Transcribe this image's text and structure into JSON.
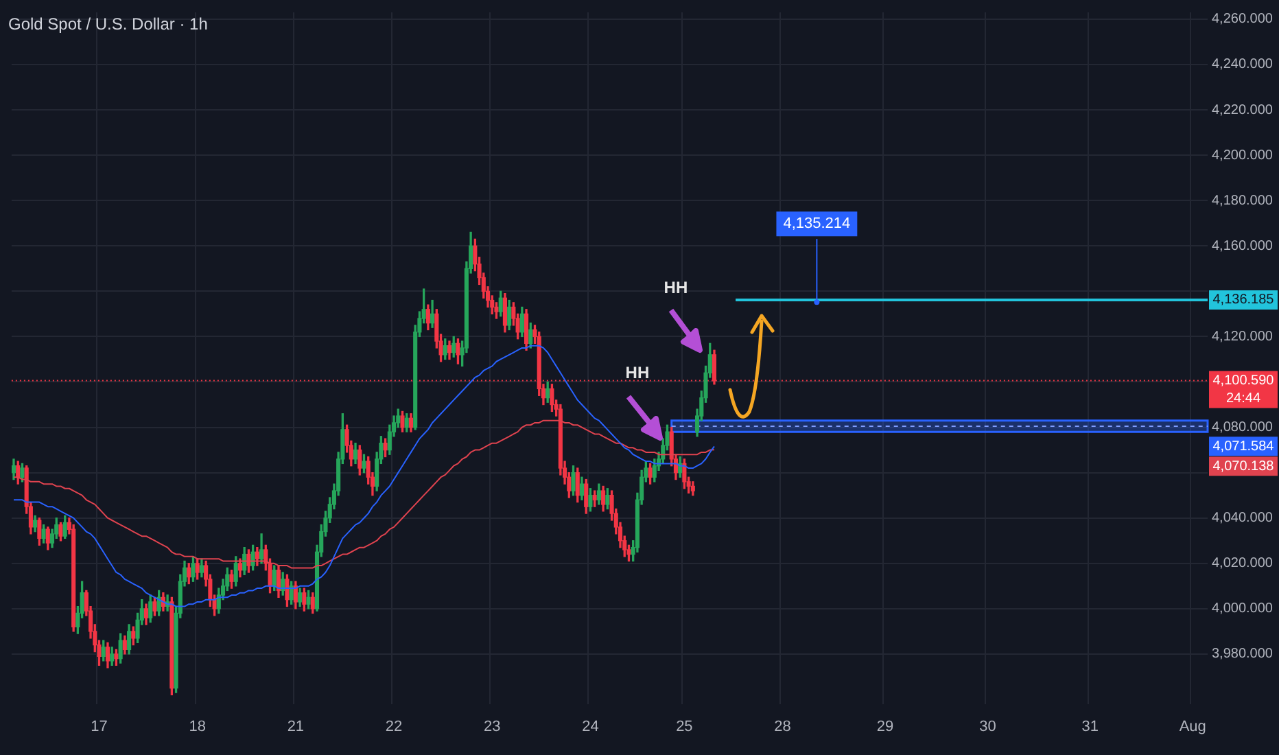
{
  "chart_data": {
    "type": "candlestick",
    "title": "Gold Spot / U.S. Dollar · 1h",
    "categories": [
      null,
      null,
      null,
      null,
      null,
      null,
      null,
      null,
      null,
      null,
      null,
      null,
      null,
      null,
      null,
      null,
      null,
      null,
      null,
      null,
      "17",
      null,
      null,
      null,
      null,
      null,
      null,
      null,
      null,
      null,
      null,
      null,
      null,
      null,
      null,
      null,
      null,
      null,
      null,
      null,
      null,
      null,
      null,
      "18",
      null,
      null,
      null,
      null,
      null,
      null,
      null,
      null,
      null,
      null,
      null,
      null,
      null,
      null,
      null,
      null,
      null,
      null,
      null,
      null,
      null,
      null,
      "21",
      null,
      null,
      null,
      null,
      null,
      null,
      null,
      null,
      null,
      null,
      null,
      null,
      null,
      null,
      null,
      null,
      null,
      null,
      null,
      null,
      null,
      null,
      "22",
      null,
      null,
      null,
      null,
      null,
      null,
      null,
      null,
      null,
      null,
      null,
      null,
      null,
      null,
      null,
      null,
      null,
      null,
      null,
      null,
      null,
      null,
      "23",
      null,
      null,
      null,
      null,
      null,
      null,
      null,
      null,
      null,
      null,
      null,
      null,
      null,
      null,
      null,
      null,
      null,
      null,
      null,
      null,
      null,
      null,
      "24",
      null,
      null,
      null,
      null,
      null,
      null,
      null,
      null,
      null,
      null,
      null,
      null,
      null,
      null,
      null,
      null,
      null,
      null,
      null,
      null,
      null,
      "25",
      null,
      null,
      null,
      null,
      null,
      null,
      null,
      null,
      null,
      null,
      null,
      null,
      null,
      null,
      null,
      null,
      null,
      null,
      null,
      null,
      null,
      null,
      "28",
      null,
      null,
      null,
      null,
      null,
      null,
      null,
      null,
      null,
      null,
      null,
      null,
      null,
      null,
      null,
      null,
      null,
      null,
      null,
      null,
      null,
      null,
      null,
      "29",
      null,
      null,
      null,
      null,
      null,
      null,
      null,
      null,
      null,
      null,
      null,
      null,
      null,
      null,
      null,
      null,
      null,
      null,
      null,
      null,
      null,
      null,
      null,
      "30",
      null,
      null,
      null,
      null,
      null,
      null,
      null,
      null,
      null,
      null,
      null,
      null,
      null,
      null,
      null,
      null,
      null,
      null,
      null,
      null,
      null,
      null,
      null,
      "31",
      null,
      null,
      null,
      null,
      null,
      null,
      null,
      null,
      null,
      null,
      null,
      null,
      null,
      null,
      null,
      null,
      null,
      null,
      null,
      null,
      null,
      null,
      null,
      "Aug",
      null,
      null,
      null
    ],
    "ohlc": [
      [
        4060,
        4066,
        4057,
        4063
      ],
      [
        4063,
        4065,
        4055,
        4058
      ],
      [
        4058,
        4064,
        4056,
        4062
      ],
      [
        4062,
        4063,
        4042,
        4045
      ],
      [
        4045,
        4047,
        4033,
        4036
      ],
      [
        4036,
        4041,
        4034,
        4039
      ],
      [
        4039,
        4040,
        4028,
        4031
      ],
      [
        4031,
        4037,
        4029,
        4035
      ],
      [
        4035,
        4036,
        4026,
        4029
      ],
      [
        4029,
        4035,
        4027,
        4033
      ],
      [
        4033,
        4040,
        4031,
        4037
      ],
      [
        4037,
        4038,
        4030,
        4032
      ],
      [
        4032,
        4041,
        4031,
        4038
      ],
      [
        4038,
        4040,
        4033,
        4035
      ],
      [
        4035,
        4037,
        3990,
        3992
      ],
      [
        3992,
        4001,
        3989,
        3998
      ],
      [
        3998,
        4012,
        3996,
        4007
      ],
      [
        4007,
        4008,
        3997,
        3999
      ],
      [
        3999,
        4001,
        3987,
        3990
      ],
      [
        3990,
        3993,
        3981,
        3984
      ],
      [
        3984,
        3986,
        3975,
        3979
      ],
      [
        3979,
        3986,
        3977,
        3983
      ],
      [
        3983,
        3985,
        3974,
        3977
      ],
      [
        3977,
        3983,
        3975,
        3980
      ],
      [
        3980,
        3982,
        3975,
        3978
      ],
      [
        3978,
        3989,
        3976,
        3986
      ],
      [
        3986,
        3988,
        3980,
        3982
      ],
      [
        3982,
        3993,
        3980,
        3990
      ],
      [
        3990,
        3992,
        3984,
        3987
      ],
      [
        3987,
        3998,
        3985,
        3995
      ],
      [
        3995,
        4004,
        3993,
        4000
      ],
      [
        4000,
        4002,
        3993,
        3996
      ],
      [
        3996,
        4006,
        3994,
        4003
      ],
      [
        4003,
        4005,
        3997,
        3999
      ],
      [
        3999,
        4008,
        3997,
        4005
      ],
      [
        4005,
        4007,
        3999,
        4001
      ],
      [
        4001,
        4006,
        3999,
        4003
      ],
      [
        4003,
        4005,
        3962,
        3965
      ],
      [
        3965,
        4001,
        3963,
        3998
      ],
      [
        3998,
        4015,
        3996,
        4012
      ],
      [
        4012,
        4021,
        4010,
        4018
      ],
      [
        4018,
        4020,
        4011,
        4014
      ],
      [
        4014,
        4023,
        4012,
        4020
      ],
      [
        4020,
        4022,
        4013,
        4016
      ],
      [
        4016,
        4022,
        4014,
        4019
      ],
      [
        4019,
        4021,
        4010,
        4013
      ],
      [
        4013,
        4015,
        4001,
        4004
      ],
      [
        4004,
        4006,
        3997,
        4000
      ],
      [
        4000,
        4009,
        3998,
        4006
      ],
      [
        4006,
        4013,
        4004,
        4010
      ],
      [
        4010,
        4018,
        4008,
        4015
      ],
      [
        4015,
        4017,
        4009,
        4012
      ],
      [
        4012,
        4023,
        4010,
        4020
      ],
      [
        4020,
        4022,
        4014,
        4017
      ],
      [
        4017,
        4027,
        4015,
        4024
      ],
      [
        4024,
        4026,
        4016,
        4019
      ],
      [
        4019,
        4028,
        4017,
        4025
      ],
      [
        4025,
        4027,
        4019,
        4022
      ],
      [
        4022,
        4033,
        4020,
        4026
      ],
      [
        4026,
        4028,
        4017,
        4020
      ],
      [
        4020,
        4022,
        4007,
        4010
      ],
      [
        4010,
        4019,
        4008,
        4017
      ],
      [
        4017,
        4019,
        4005,
        4008
      ],
      [
        4008,
        4016,
        4006,
        4013
      ],
      [
        4013,
        4015,
        4001,
        4004
      ],
      [
        4004,
        4012,
        4002,
        4010
      ],
      [
        4010,
        4012,
        4000,
        4003
      ],
      [
        4003,
        4009,
        4001,
        4007
      ],
      [
        4007,
        4009,
        3999,
        4002
      ],
      [
        4002,
        4008,
        4000,
        4005
      ],
      [
        4005,
        4007,
        3998,
        4000
      ],
      [
        4000,
        4028,
        3999,
        4025
      ],
      [
        4025,
        4037,
        4023,
        4034
      ],
      [
        4034,
        4043,
        4032,
        4040
      ],
      [
        4040,
        4049,
        4038,
        4046
      ],
      [
        4046,
        4055,
        4044,
        4052
      ],
      [
        4052,
        4069,
        4050,
        4066
      ],
      [
        4066,
        4086,
        4064,
        4079
      ],
      [
        4079,
        4081,
        4069,
        4072
      ],
      [
        4072,
        4074,
        4063,
        4066
      ],
      [
        4066,
        4073,
        4064,
        4070
      ],
      [
        4070,
        4072,
        4059,
        4062
      ],
      [
        4062,
        4068,
        4060,
        4065
      ],
      [
        4065,
        4067,
        4055,
        4058
      ],
      [
        4058,
        4060,
        4050,
        4054
      ],
      [
        4054,
        4069,
        4052,
        4066
      ],
      [
        4066,
        4076,
        4064,
        4073
      ],
      [
        4073,
        4075,
        4067,
        4070
      ],
      [
        4070,
        4081,
        4068,
        4078
      ],
      [
        4078,
        4085,
        4076,
        4082
      ],
      [
        4082,
        4088,
        4080,
        4085
      ],
      [
        4085,
        4087,
        4078,
        4080
      ],
      [
        4080,
        4086,
        4078,
        4084
      ],
      [
        4084,
        4086,
        4078,
        4080
      ],
      [
        4080,
        4125,
        4079,
        4122
      ],
      [
        4122,
        4131,
        4120,
        4128
      ],
      [
        4128,
        4141,
        4126,
        4132
      ],
      [
        4132,
        4134,
        4123,
        4126
      ],
      [
        4126,
        4136,
        4124,
        4130
      ],
      [
        4130,
        4132,
        4115,
        4118
      ],
      [
        4118,
        4121,
        4109,
        4112
      ],
      [
        4112,
        4119,
        4110,
        4116
      ],
      [
        4116,
        4118,
        4110,
        4113
      ],
      [
        4113,
        4120,
        4111,
        4117
      ],
      [
        4117,
        4119,
        4108,
        4112
      ],
      [
        4112,
        4118,
        4107,
        4115
      ],
      [
        4115,
        4153,
        4113,
        4150
      ],
      [
        4150,
        4166,
        4148,
        4160
      ],
      [
        4160,
        4163,
        4149,
        4152
      ],
      [
        4152,
        4155,
        4143,
        4146
      ],
      [
        4146,
        4148,
        4137,
        4140
      ],
      [
        4140,
        4142,
        4133,
        4136
      ],
      [
        4136,
        4138,
        4130,
        4133
      ],
      [
        4133,
        4135,
        4128,
        4131
      ],
      [
        4131,
        4140,
        4129,
        4137
      ],
      [
        4137,
        4139,
        4122,
        4125
      ],
      [
        4125,
        4136,
        4123,
        4133
      ],
      [
        4133,
        4135,
        4125,
        4128
      ],
      [
        4128,
        4130,
        4119,
        4122
      ],
      [
        4122,
        4133,
        4120,
        4130
      ],
      [
        4130,
        4132,
        4114,
        4117
      ],
      [
        4117,
        4126,
        4115,
        4123
      ],
      [
        4123,
        4125,
        4117,
        4120
      ],
      [
        4120,
        4122,
        4094,
        4097
      ],
      [
        4097,
        4099,
        4090,
        4093
      ],
      [
        4093,
        4100,
        4091,
        4097
      ],
      [
        4097,
        4099,
        4087,
        4090
      ],
      [
        4090,
        4092,
        4085,
        4088
      ],
      [
        4088,
        4090,
        4059,
        4062
      ],
      [
        4062,
        4065,
        4055,
        4058
      ],
      [
        4058,
        4060,
        4049,
        4052
      ],
      [
        4052,
        4063,
        4050,
        4060
      ],
      [
        4060,
        4062,
        4047,
        4050
      ],
      [
        4050,
        4058,
        4048,
        4055
      ],
      [
        4055,
        4057,
        4042,
        4045
      ],
      [
        4045,
        4053,
        4043,
        4050
      ],
      [
        4050,
        4052,
        4045,
        4048
      ],
      [
        4048,
        4055,
        4046,
        4052
      ],
      [
        4052,
        4054,
        4043,
        4046
      ],
      [
        4046,
        4053,
        4044,
        4050
      ],
      [
        4050,
        4052,
        4039,
        4042
      ],
      [
        4042,
        4044,
        4033,
        4036
      ],
      [
        4036,
        4038,
        4027,
        4030
      ],
      [
        4030,
        4032,
        4023,
        4026
      ],
      [
        4026,
        4028,
        4021,
        4024
      ],
      [
        4024,
        4030,
        4021,
        4027
      ],
      [
        4027,
        4051,
        4025,
        4048
      ],
      [
        4048,
        4061,
        4046,
        4058
      ],
      [
        4058,
        4065,
        4056,
        4062
      ],
      [
        4062,
        4064,
        4055,
        4058
      ],
      [
        4058,
        4066,
        4056,
        4063
      ],
      [
        4063,
        4069,
        4061,
        4066
      ],
      [
        4066,
        4075,
        4064,
        4072
      ],
      [
        4072,
        4081,
        4070,
        4078
      ],
      [
        4078,
        4080,
        4063,
        4066
      ],
      [
        4066,
        4068,
        4057,
        4060
      ],
      [
        4060,
        4067,
        4058,
        4064
      ],
      [
        4064,
        4066,
        4053,
        4056
      ],
      [
        4056,
        4058,
        4051,
        4054
      ],
      [
        4054,
        4056,
        4050,
        4052
      ],
      [
        4078,
        4088,
        4076,
        4085
      ],
      [
        4085,
        4096,
        4083,
        4093
      ],
      [
        4093,
        4107,
        4091,
        4104
      ],
      [
        4104,
        4117,
        4102,
        4112
      ],
      [
        4112,
        4114,
        4099,
        4100.59
      ],
      null,
      null,
      null,
      null,
      null,
      null,
      null,
      null,
      null,
      null,
      null,
      null,
      null,
      null,
      null,
      null,
      null,
      null,
      null,
      null,
      null,
      null,
      null,
      null,
      null,
      null,
      null,
      null,
      null,
      null,
      null,
      null,
      null,
      null,
      null,
      null,
      null,
      null,
      null,
      null,
      null,
      null,
      null,
      null,
      null,
      null,
      null,
      null,
      null,
      null,
      null,
      null,
      null,
      null,
      null,
      null,
      null,
      null,
      null,
      null,
      null,
      null,
      null,
      null,
      null,
      null,
      null,
      null,
      null,
      null,
      null,
      null,
      null,
      null,
      null,
      null,
      null,
      null,
      null,
      null,
      null,
      null,
      null,
      null,
      null,
      null,
      null,
      null,
      null,
      null,
      null,
      null,
      null,
      null,
      null,
      null,
      null,
      null,
      null,
      null,
      null,
      null,
      null,
      null,
      null,
      null,
      null,
      null,
      null,
      null,
      null,
      null,
      null,
      null,
      null
    ],
    "series": [
      {
        "type": "line",
        "color": "#2962ff",
        "values": [
          4048,
          4048,
          4048,
          4047,
          4047,
          4047,
          4047,
          4046,
          4045,
          4045,
          4044,
          4043,
          4042,
          4041,
          4040,
          4038,
          4036,
          4034,
          4033,
          4031,
          4028,
          4025,
          4022,
          4019,
          4016,
          4015,
          4013,
          4012,
          4011,
          4010,
          4009,
          4007,
          4006,
          4005,
          4004,
          4003,
          4002,
          4002,
          4001,
          4001,
          4001,
          4002,
          4002,
          4003,
          4003,
          4004,
          4004,
          4004,
          4005,
          4005,
          4005,
          4006,
          4006,
          4007,
          4007,
          4008,
          4008,
          4009,
          4009,
          4010,
          4010,
          4010,
          4009,
          4009,
          4009,
          4009,
          4009,
          4010,
          4010,
          4010,
          4011,
          4013,
          4014,
          4016,
          4019,
          4023,
          4027,
          4031,
          4033,
          4035,
          4037,
          4038,
          4040,
          4042,
          4045,
          4047,
          4050,
          4052,
          4054,
          4057,
          4060,
          4063,
          4066,
          4069,
          4072,
          4075,
          4077,
          4079,
          4082,
          4084,
          4086,
          4088,
          4090,
          4092,
          4094,
          4096,
          4098,
          4100,
          4102,
          4103,
          4105,
          4106,
          4107,
          4109,
          4110,
          4111,
          4112,
          4113,
          4114,
          4115,
          4115,
          4116,
          4116,
          4116,
          4115,
          4113,
          4110,
          4107,
          4104,
          4101,
          4098,
          4095,
          4092,
          4090,
          4088,
          4086,
          4084,
          4083,
          4081,
          4079,
          4077,
          4075,
          4073,
          4071,
          4070,
          4068,
          4067,
          4066,
          4065,
          4065,
          4064,
          4064,
          4064,
          4064,
          4064,
          4064,
          4063,
          4063,
          4062,
          4062,
          4063,
          4064,
          4066,
          4069,
          4071.584,
          null,
          null,
          null,
          null,
          null,
          null,
          null,
          null,
          null,
          null,
          null,
          null,
          null,
          null,
          null,
          null,
          null,
          null,
          null,
          null,
          null,
          null,
          null,
          null,
          null,
          null,
          null,
          null,
          null,
          null,
          null,
          null,
          null,
          null,
          null,
          null,
          null,
          null,
          null,
          null,
          null,
          null,
          null,
          null,
          null,
          null,
          null,
          null,
          null,
          null,
          null,
          null,
          null,
          null,
          null,
          null,
          null,
          null,
          null,
          null,
          null,
          null,
          null,
          null,
          null,
          null,
          null,
          null,
          null,
          null,
          null,
          null,
          null,
          null,
          null,
          null,
          null,
          null,
          null,
          null,
          null,
          null,
          null,
          null,
          null,
          null,
          null,
          null,
          null,
          null,
          null,
          null,
          null,
          null,
          null,
          null,
          null,
          null,
          null,
          null,
          null,
          null,
          null,
          null,
          null,
          null,
          null,
          null,
          null,
          null,
          null,
          null,
          null,
          null,
          null
        ]
      },
      {
        "type": "line",
        "color": "#e0434f",
        "values": [
          4058,
          4058,
          4057,
          4057,
          4056,
          4056,
          4056,
          4055,
          4055,
          4055,
          4054,
          4054,
          4053,
          4053,
          4052,
          4051,
          4050,
          4048,
          4047,
          4046,
          4044,
          4042,
          4040,
          4039,
          4038,
          4037,
          4036,
          4035,
          4034,
          4033,
          4032,
          4032,
          4031,
          4030,
          4029,
          4028,
          4027,
          4025,
          4024,
          4024,
          4023,
          4023,
          4023,
          4022,
          4022,
          4022,
          4022,
          4022,
          4022,
          4021,
          4021,
          4021,
          4021,
          4021,
          4021,
          4021,
          4021,
          4021,
          4021,
          4021,
          4020,
          4020,
          4019,
          4019,
          4019,
          4018,
          4018,
          4018,
          4018,
          4018,
          4018,
          4019,
          4019,
          4020,
          4021,
          4022,
          4023,
          4024,
          4024,
          4025,
          4026,
          4027,
          4027,
          4028,
          4029,
          4030,
          4032,
          4033,
          4035,
          4036,
          4038,
          4040,
          4042,
          4044,
          4046,
          4048,
          4050,
          4052,
          4054,
          4056,
          4058,
          4059,
          4061,
          4063,
          4064,
          4066,
          4067,
          4069,
          4070,
          4070,
          4071,
          4072,
          4073,
          4073,
          4074,
          4075,
          4076,
          4077,
          4078,
          4080,
          4081,
          4081,
          4082,
          4082,
          4083,
          4083,
          4083,
          4083,
          4083,
          4082,
          4082,
          4081,
          4081,
          4080,
          4079,
          4078,
          4077,
          4077,
          4076,
          4075,
          4074,
          4073,
          4073,
          4072,
          4071,
          4071,
          4070,
          4070,
          4069,
          4069,
          4069,
          4068,
          4068,
          4068,
          4068,
          4068,
          4068,
          4068,
          4068,
          4068,
          4068,
          4069,
          4069,
          4070,
          4070.138,
          null,
          null,
          null,
          null,
          null,
          null,
          null,
          null,
          null,
          null,
          null,
          null,
          null,
          null,
          null,
          null,
          null,
          null,
          null,
          null,
          null,
          null,
          null,
          null,
          null,
          null,
          null,
          null,
          null,
          null,
          null,
          null,
          null,
          null,
          null,
          null,
          null,
          null,
          null,
          null,
          null,
          null,
          null,
          null,
          null,
          null,
          null,
          null,
          null,
          null,
          null,
          null,
          null,
          null,
          null,
          null,
          null,
          null,
          null,
          null,
          null,
          null,
          null,
          null,
          null,
          null,
          null,
          null,
          null,
          null,
          null,
          null,
          null,
          null,
          null,
          null,
          null,
          null,
          null,
          null,
          null,
          null,
          null,
          null,
          null,
          null,
          null,
          null,
          null,
          null,
          null,
          null,
          null,
          null,
          null,
          null,
          null,
          null,
          null,
          null,
          null,
          null,
          null,
          null,
          null,
          null,
          null,
          null,
          null,
          null,
          null,
          null,
          null,
          null,
          null
        ]
      }
    ],
    "ylim": [
      3958,
      4263
    ],
    "yticks": [
      {
        "value": 3980,
        "label": "3,980.000"
      },
      {
        "value": 4000,
        "label": "4,000.000"
      },
      {
        "value": 4020,
        "label": "4,020.000"
      },
      {
        "value": 4040,
        "label": "4,040.000"
      },
      {
        "value": 4060,
        "label": null
      },
      {
        "value": 4080,
        "label": "4,080.000"
      },
      {
        "value": 4100,
        "label": null
      },
      {
        "value": 4120,
        "label": "4,120.000"
      },
      {
        "value": 4140,
        "label": null
      },
      {
        "value": 4160,
        "label": "4,160.000"
      },
      {
        "value": 4180,
        "label": "4,180.000"
      },
      {
        "value": 4200,
        "label": "4,200.000"
      },
      {
        "value": 4220,
        "label": "4,220.000"
      },
      {
        "value": 4240,
        "label": "4,240.000"
      },
      {
        "value": 4260,
        "label": "4,260.000"
      }
    ],
    "grid": true,
    "ref_lines": [
      {
        "axis": "y",
        "value": 4136.185,
        "label": "4,136.185",
        "color": "#22c4dc",
        "line_style": "solid"
      },
      {
        "axis": "y",
        "value": 4100.59,
        "label": "4,100.590\n24:44",
        "color": "#f23645",
        "line_style": "dotted"
      }
    ],
    "bands": [
      {
        "axis": "y",
        "from": 4078,
        "to": 4083,
        "color": "#2962ff"
      }
    ],
    "annotations": [
      "HH",
      "HH",
      {
        "text": "4,135.214",
        "y": 4135.214
      },
      "4,071.584",
      "4,070.138"
    ]
  }
}
